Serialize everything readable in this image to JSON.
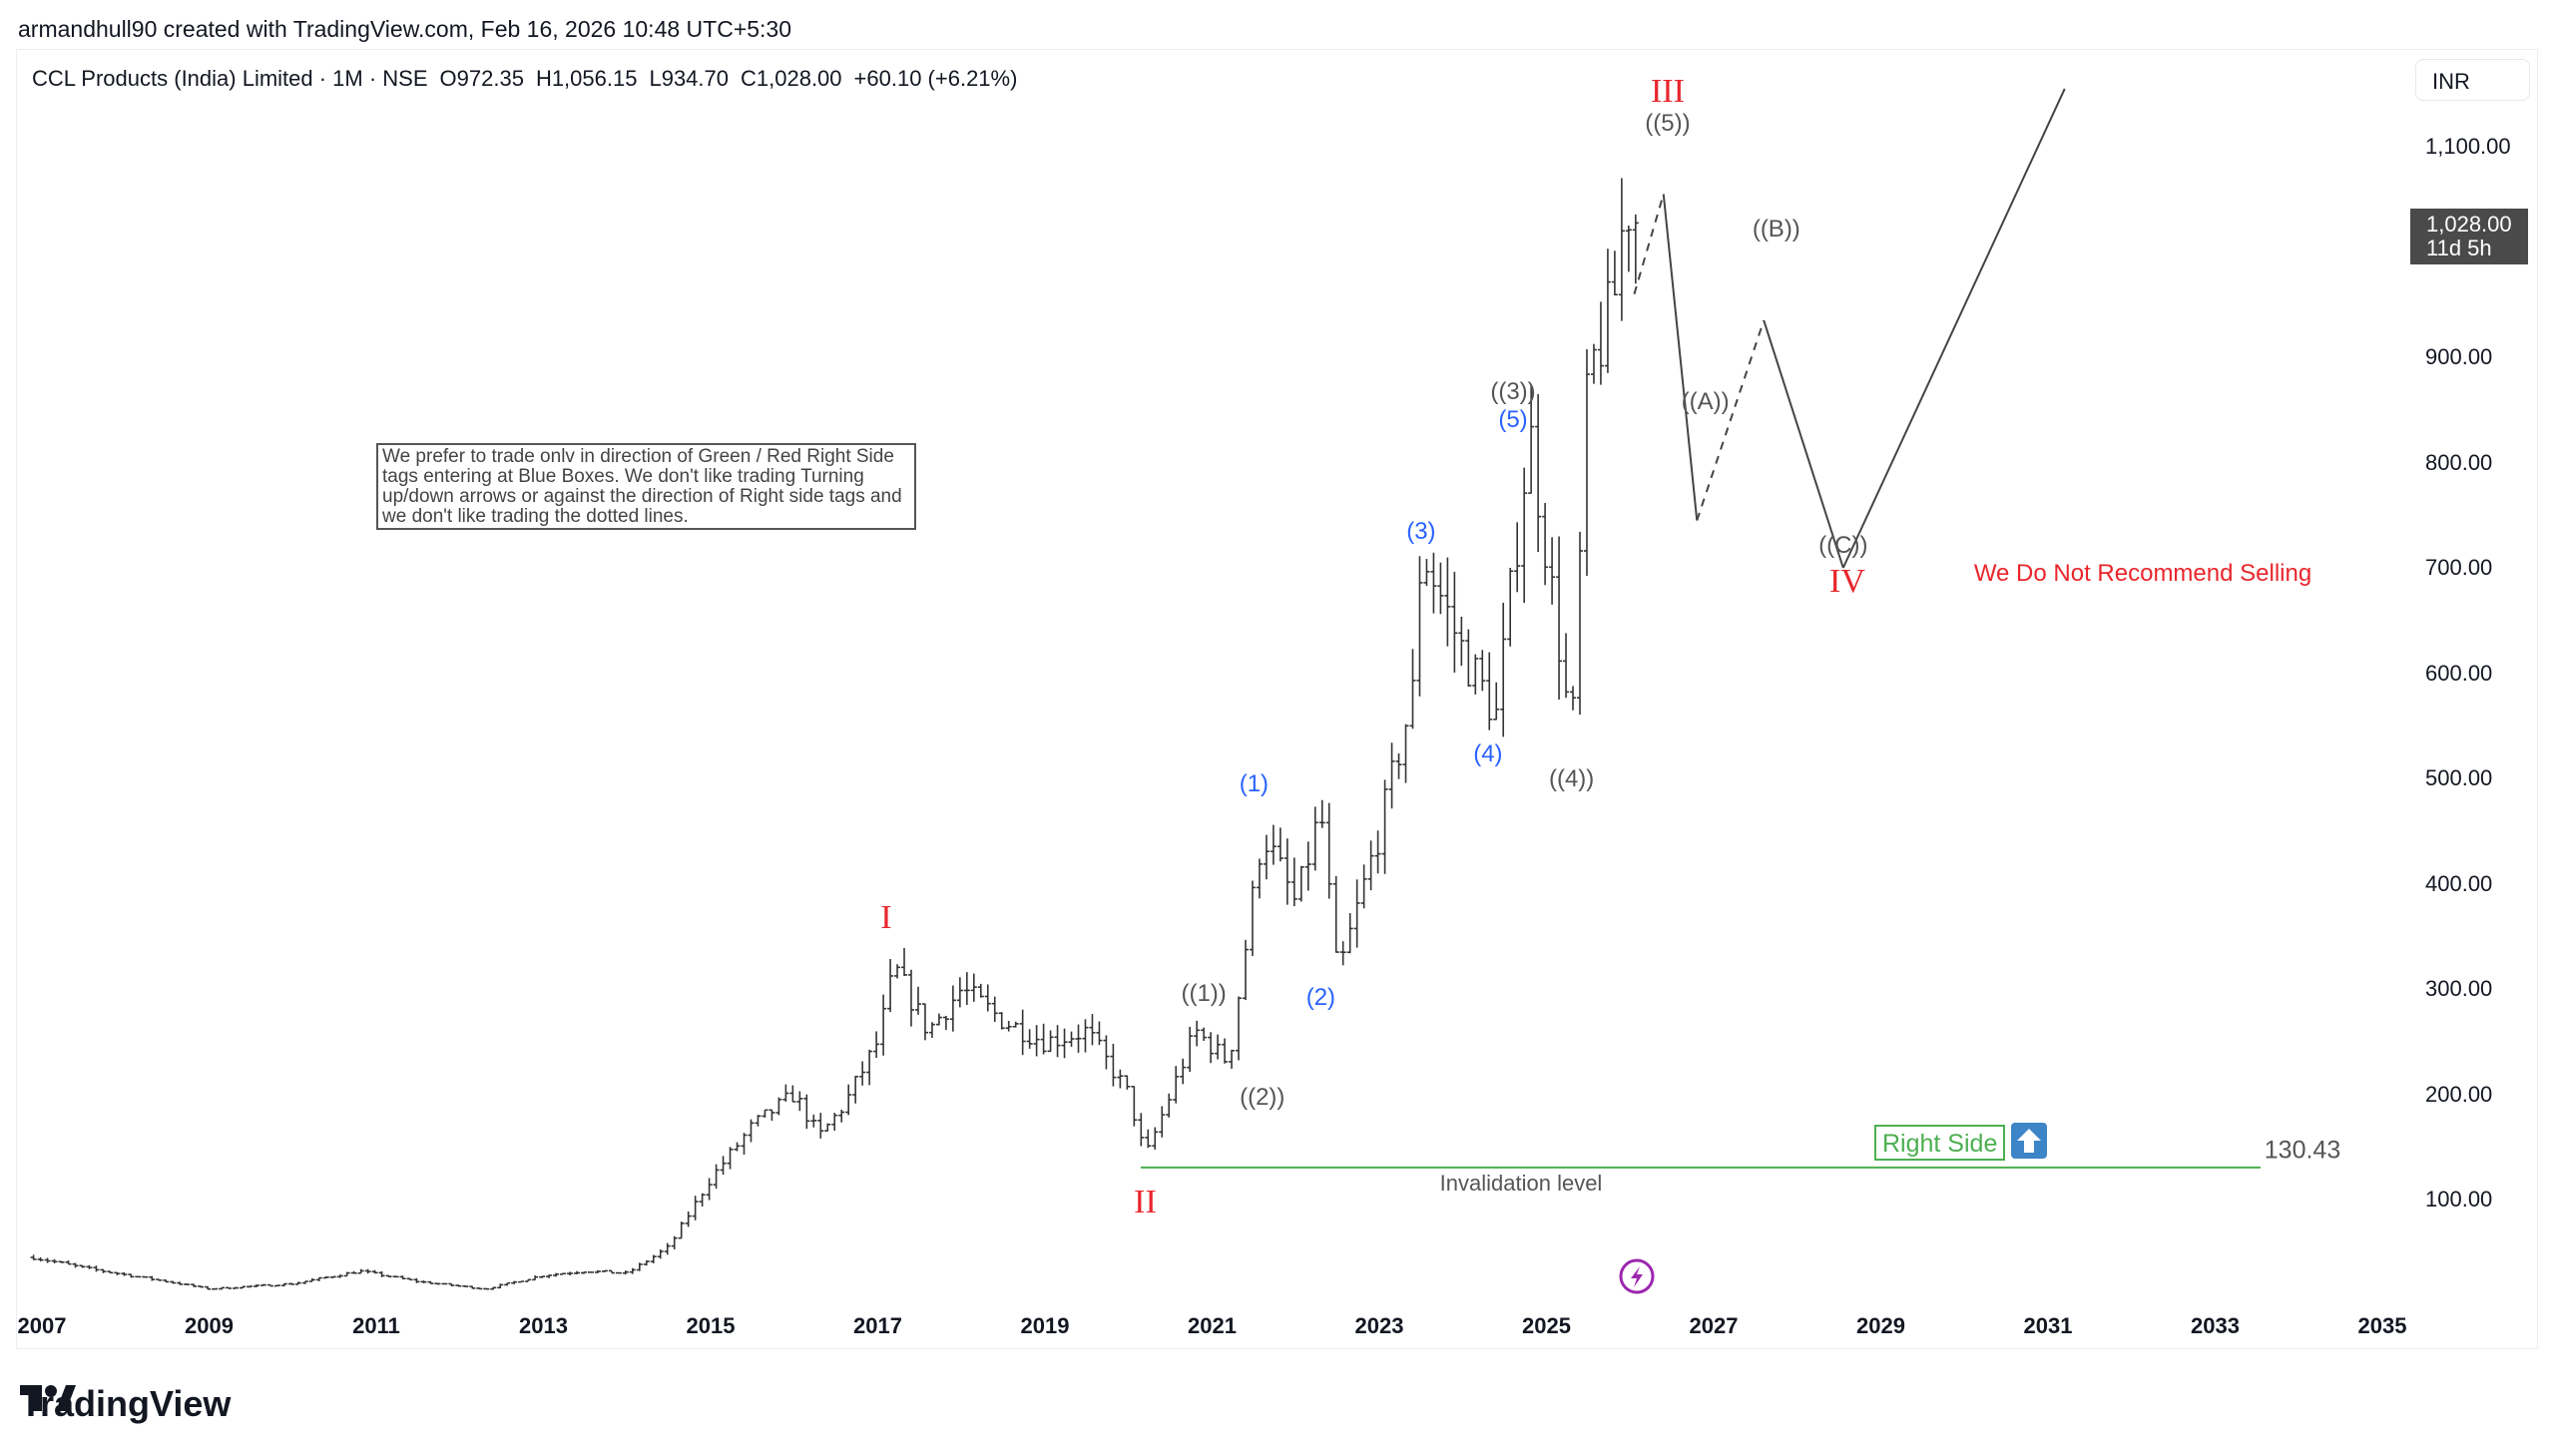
{
  "header": {
    "credit": "armandhull90 created with TradingView.com, Feb 16, 2026 10:48 UTC+5:30"
  },
  "legend": {
    "symbol": "CCL Products (India) Limited · 1M · NSE",
    "open": "O972.35",
    "high": "H1,056.15",
    "low": "L934.70",
    "close": "C1,028.00",
    "change": "+60.10 (+6.21%)"
  },
  "currency": "INR",
  "last_price": {
    "value": "1,028.00",
    "countdown": "11d 5h"
  },
  "note": "We prefer to trade onlv in direction of Green / Red Right Side tags entering at Blue Boxes. We don't like trading Turning up/down arrows or against the direction of Right side tags and we don't like trading the dotted lines.",
  "right_side": {
    "label": "Right Side",
    "icon": "arrow-up-icon",
    "color": "#4caf50",
    "box_color": "#3d85c6"
  },
  "invalidation": {
    "label": "Invalidation level",
    "value": "130.43",
    "price": 130.43
  },
  "recommendation": "We Do Not Recommend Selling",
  "branding": "TradingView",
  "chart_data": {
    "type": "ohlc-bar",
    "interval": "1M",
    "ylim": [
      0,
      1150
    ],
    "xlim": [
      2007,
      2035.5
    ],
    "price_ticks": [
      "1,100.00",
      "900.00",
      "800.00",
      "700.00",
      "600.00",
      "500.00",
      "400.00",
      "300.00",
      "200.00",
      "100.00"
    ],
    "price_tick_values": [
      1100,
      900,
      800,
      700,
      600,
      500,
      400,
      300,
      200,
      100
    ],
    "time_ticks": [
      "2007",
      "2009",
      "2011",
      "2013",
      "2015",
      "2017",
      "2019",
      "2021",
      "2023",
      "2025",
      "2027",
      "2029",
      "2031",
      "2033",
      "2035"
    ],
    "approx_price_path": [
      [
        2006.9,
        45
      ],
      [
        2007.5,
        35
      ],
      [
        2008.5,
        22
      ],
      [
        2009.0,
        15
      ],
      [
        2010.0,
        20
      ],
      [
        2010.8,
        32
      ],
      [
        2011.5,
        22
      ],
      [
        2012.3,
        15
      ],
      [
        2013.0,
        28
      ],
      [
        2013.5,
        32
      ],
      [
        2014.0,
        30
      ],
      [
        2014.5,
        55
      ],
      [
        2015.0,
        120
      ],
      [
        2015.5,
        170
      ],
      [
        2016.0,
        200
      ],
      [
        2016.3,
        160
      ],
      [
        2016.6,
        190
      ],
      [
        2017.0,
        250
      ],
      [
        2017.2,
        320
      ],
      [
        2017.6,
        260
      ],
      [
        2018.0,
        300
      ],
      [
        2018.5,
        270
      ],
      [
        2019.0,
        250
      ],
      [
        2019.5,
        260
      ],
      [
        2020.0,
        200
      ],
      [
        2020.2,
        140
      ],
      [
        2020.5,
        200
      ],
      [
        2020.8,
        260
      ],
      [
        2021.2,
        230
      ],
      [
        2021.6,
        450
      ],
      [
        2022.0,
        380
      ],
      [
        2022.3,
        470
      ],
      [
        2022.5,
        310
      ],
      [
        2023.0,
        450
      ],
      [
        2023.4,
        580
      ],
      [
        2023.5,
        720
      ],
      [
        2024.0,
        620
      ],
      [
        2024.4,
        560
      ],
      [
        2024.8,
        830
      ],
      [
        2025.2,
        600
      ],
      [
        2025.3,
        530
      ],
      [
        2025.5,
        880
      ],
      [
        2025.8,
        950
      ],
      [
        2025.95,
        1050
      ],
      [
        2026.1,
        1028
      ]
    ],
    "projection_path": [
      [
        2026.05,
        960
      ],
      [
        2026.4,
        1055
      ],
      [
        2026.8,
        745
      ],
      [
        2027.6,
        935
      ],
      [
        2028.55,
        700
      ],
      [
        2031.2,
        1155
      ]
    ],
    "projection_dashed_segments": [
      1,
      3
    ],
    "wave_labels": [
      {
        "text": "I",
        "t": 2017.1,
        "p": 367,
        "style": "roman"
      },
      {
        "text": "II",
        "t": 2020.2,
        "p": 97,
        "style": "roman"
      },
      {
        "text": "((1))",
        "t": 2020.9,
        "p": 295,
        "style": "gray"
      },
      {
        "text": "((2))",
        "t": 2021.6,
        "p": 197,
        "style": "gray"
      },
      {
        "text": "(1)",
        "t": 2021.5,
        "p": 494,
        "style": "blue"
      },
      {
        "text": "(2)",
        "t": 2022.3,
        "p": 291,
        "style": "blue"
      },
      {
        "text": "(3)",
        "t": 2023.5,
        "p": 734,
        "style": "blue"
      },
      {
        "text": "(4)",
        "t": 2024.3,
        "p": 523,
        "style": "blue"
      },
      {
        "text": "(5)",
        "t": 2024.6,
        "p": 840,
        "style": "blue"
      },
      {
        "text": "((3))",
        "t": 2024.6,
        "p": 867,
        "style": "gray"
      },
      {
        "text": "((4))",
        "t": 2025.3,
        "p": 499,
        "style": "gray"
      },
      {
        "text": "((5))",
        "t": 2026.45,
        "p": 1122,
        "style": "gray"
      },
      {
        "text": "III",
        "t": 2026.45,
        "p": 1152,
        "style": "roman"
      },
      {
        "text": "((A))",
        "t": 2026.9,
        "p": 857,
        "style": "gray"
      },
      {
        "text": "((B))",
        "t": 2027.75,
        "p": 1021,
        "style": "gray"
      },
      {
        "text": "((C))",
        "t": 2028.55,
        "p": 721,
        "style": "gray"
      },
      {
        "text": "IV",
        "t": 2028.6,
        "p": 687,
        "style": "roman"
      }
    ]
  }
}
